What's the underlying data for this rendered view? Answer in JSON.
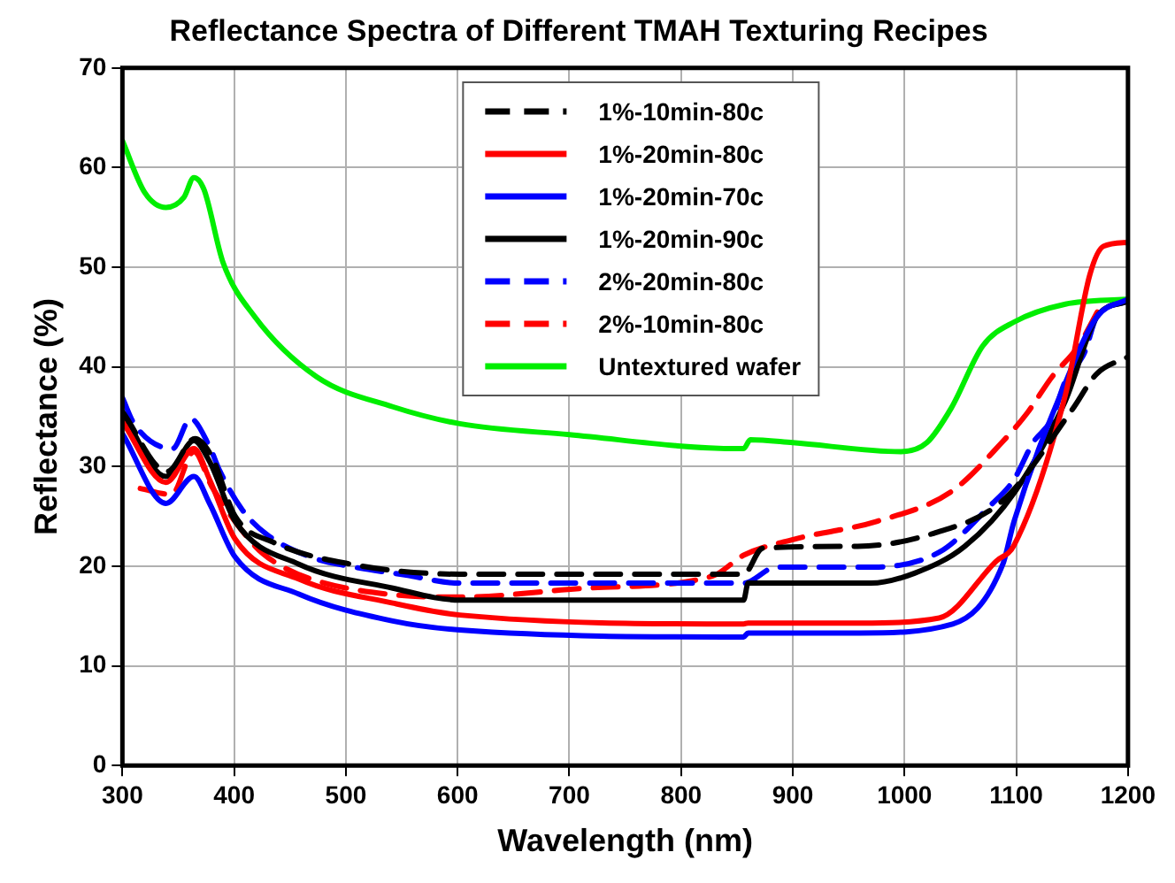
{
  "chart_data": {
    "type": "line",
    "title": "Reflectance Spectra of Different TMAH Texturing Recipes",
    "xlabel": "Wavelength (nm)",
    "ylabel": "Reflectance (%)",
    "xlim": [
      300,
      1200
    ],
    "xticks": [
      300,
      400,
      500,
      600,
      700,
      800,
      900,
      1000,
      1100,
      1200
    ],
    "ylim": [
      0,
      70
    ],
    "yticks": [
      0,
      10,
      20,
      30,
      40,
      50,
      60,
      70
    ],
    "grid": true,
    "legend": "top",
    "marker": "none",
    "series": [
      {
        "name": "1%-10min-80c",
        "color": "#000000",
        "line_style": "dashed",
        "x": [
          300,
          340,
          365,
          380,
          401,
          435,
          500,
          602,
          856,
          873,
          958,
          1026,
          1088,
          1150,
          1172,
          1200
        ],
        "values": [
          35.5,
          29.5,
          32.8,
          31,
          25,
          22.4,
          20.3,
          19.2,
          19.2,
          21.8,
          22,
          23.3,
          26.6,
          35.7,
          39.3,
          41
        ]
      },
      {
        "name": "1%-20min-80c",
        "color": "#ff0000",
        "line_style": "solid",
        "x": [
          300,
          339,
          364,
          378,
          401,
          458,
          542,
          602,
          856,
          860,
          960,
          1031,
          1082,
          1098,
          1144,
          1166,
          1178,
          1200
        ],
        "values": [
          34.5,
          28.4,
          31.8,
          28.7,
          22.7,
          18.7,
          16.3,
          15.1,
          14.2,
          14.3,
          14.3,
          14.8,
          20.5,
          22.1,
          37.2,
          49.3,
          52.1,
          52.5
        ]
      },
      {
        "name": "1%-20min-70c",
        "color": "#0000ff",
        "line_style": "solid",
        "x": [
          300,
          339,
          364,
          378,
          401,
          458,
          542,
          602,
          856,
          860,
          960,
          1043,
          1088,
          1098,
          1144,
          1172,
          1200
        ],
        "values": [
          33.3,
          26.3,
          29,
          26.3,
          20.9,
          17.2,
          14.5,
          13.6,
          12.9,
          13.3,
          13.3,
          14.2,
          20.2,
          24.5,
          38.4,
          45,
          46.8
        ]
      },
      {
        "name": "1%-20min-90c",
        "color": "#000000",
        "line_style": "solid",
        "x": [
          300,
          339,
          364,
          378,
          401,
          458,
          542,
          602,
          856,
          860,
          970,
          1009,
          1054,
          1099,
          1144,
          1172,
          1200
        ],
        "values": [
          35.4,
          29,
          32.6,
          30.5,
          24.5,
          20.2,
          17.8,
          16.6,
          16.6,
          18.3,
          18.3,
          19.3,
          22,
          27.5,
          36.6,
          45,
          46.6
        ]
      },
      {
        "name": "2%-20min-80c",
        "color": "#0000ff",
        "line_style": "dashed",
        "x": [
          300,
          311,
          345,
          361,
          378,
          387,
          407,
          429,
          469,
          503,
          554,
          602,
          856,
          885,
          964,
          1031,
          1076,
          1098,
          1115,
          1132,
          1144,
          1161,
          1172,
          1200
        ],
        "values": [
          36.9,
          34.2,
          31.8,
          34.8,
          32,
          29.6,
          25.7,
          23.2,
          20.9,
          20,
          19.1,
          18.3,
          18.3,
          19.9,
          19.9,
          21.4,
          26,
          28.7,
          32.4,
          34.8,
          38.6,
          41.4,
          45,
          46.6
        ]
      },
      {
        "name": "2%-10min-80c",
        "color": "#ff0000",
        "line_style": "dashed",
        "x": [
          316,
          344,
          364,
          380,
          418,
          435,
          469,
          537,
          602,
          715,
          828,
          856,
          901,
          975,
          1042,
          1087,
          1110,
          1132,
          1155,
          1175
        ],
        "values": [
          27.8,
          27.2,
          31.5,
          28,
          22.1,
          20.5,
          18.7,
          17.2,
          16.9,
          17.8,
          19,
          21.1,
          22.7,
          24.5,
          27.5,
          32.4,
          35.4,
          39,
          42,
          46
        ]
      },
      {
        "name": "Untextured wafer",
        "color": "#00ee00",
        "line_style": "solid",
        "x": [
          300,
          320,
          339,
          355,
          364,
          373,
          390,
          418,
          474,
          542,
          602,
          700,
          850,
          856,
          862,
          900,
          997,
          1020,
          1042,
          1070,
          1098,
          1144,
          1200
        ],
        "values": [
          62.7,
          57.5,
          56,
          57,
          59,
          57.8,
          50.5,
          45.1,
          39,
          36,
          34.3,
          33.2,
          31.8,
          31.8,
          32.7,
          32.4,
          31.5,
          32.4,
          35.9,
          42.1,
          44.5,
          46.3,
          46.8
        ]
      }
    ]
  }
}
